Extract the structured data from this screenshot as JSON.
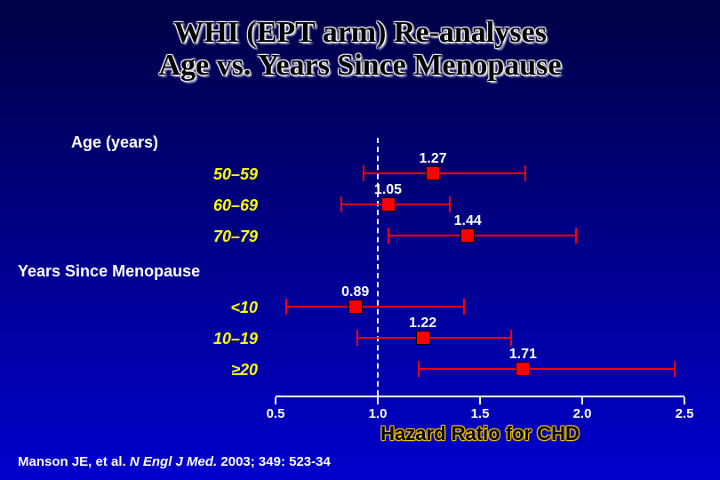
{
  "title": {
    "line1": "WHI (EPT arm) Re-analyses",
    "line2": "Age vs. Years Since Menopause",
    "fontsize": 34
  },
  "chart": {
    "type": "forest",
    "xmin": 0.5,
    "xmax": 2.5,
    "ticks": [
      0.5,
      1.0,
      1.5,
      2.0,
      2.5
    ],
    "tick_labels": [
      "0.5",
      "1.0",
      "1.5",
      "2.0",
      "2.5"
    ],
    "reference": 1.0,
    "reference_style": "dashed",
    "reference_color": "#ffffff",
    "axis_title": "Hazard Ratio for CHD",
    "axis_title_color": "#000000",
    "axis_title_outline": "#ffcc00",
    "axis_title_fontsize": 22,
    "line_color": "#ff0000",
    "marker_color": "#ff0000",
    "marker_shape": "square",
    "marker_size": 16,
    "label_color": "#ffff00",
    "value_label_color": "#ffffff",
    "section1_label": "Age (years)",
    "section2_label": "Years Since Menopause",
    "rows": [
      {
        "section": 1,
        "label": "50–59",
        "point": 1.27,
        "low": 0.93,
        "high": 1.72,
        "value_text": "1.27"
      },
      {
        "section": 1,
        "label": "60–69",
        "point": 1.05,
        "low": 0.82,
        "high": 1.35,
        "value_text": "1.05"
      },
      {
        "section": 1,
        "label": "70–79",
        "point": 1.44,
        "low": 1.05,
        "high": 1.97,
        "value_text": "1.44"
      },
      {
        "section": 2,
        "label": "<10",
        "point": 0.89,
        "low": 0.55,
        "high": 1.42,
        "value_text": "0.89"
      },
      {
        "section": 2,
        "label": "10–19",
        "point": 1.22,
        "low": 0.9,
        "high": 1.65,
        "value_text": "1.22"
      },
      {
        "section": 2,
        "label": "≥20",
        "point": 1.71,
        "low": 1.2,
        "high": 2.45,
        "value_text": "1.71"
      }
    ]
  },
  "citation": {
    "prefix": "Manson JE, et al. ",
    "journal": "N Engl J Med.",
    "suffix": " 2003; 349: 523-34"
  },
  "colors": {
    "bg_top": "#000044",
    "bg_bottom": "#0000cc",
    "text_white": "#ffffff",
    "text_yellow": "#ffff00",
    "series_red": "#ff0000"
  }
}
